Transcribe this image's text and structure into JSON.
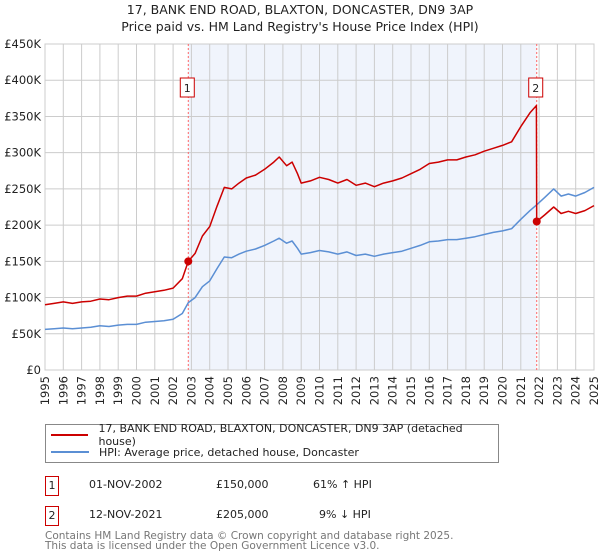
{
  "chart_data": {
    "type": "line",
    "title": "17, BANK END ROAD, BLAXTON, DONCASTER, DN9 3AP",
    "subtitle": "Price paid vs. HM Land Registry's House Price Index (HPI)",
    "xlabel": "",
    "ylabel": "",
    "xlim": [
      1995,
      2025
    ],
    "ylim": [
      0,
      450000
    ],
    "grid": true,
    "yticks": [
      0,
      50000,
      100000,
      150000,
      200000,
      250000,
      300000,
      350000,
      400000,
      450000
    ],
    "ytick_labels": [
      "£0",
      "£50K",
      "£100K",
      "£150K",
      "£200K",
      "£250K",
      "£300K",
      "£350K",
      "£400K",
      "£450K"
    ],
    "xtick_labels": [
      "1995",
      "1996",
      "1997",
      "1998",
      "1999",
      "2000",
      "2001",
      "2002",
      "2003",
      "2004",
      "2005",
      "2006",
      "2007",
      "2008",
      "2009",
      "2010",
      "2011",
      "2012",
      "2013",
      "2014",
      "2015",
      "2016",
      "2017",
      "2018",
      "2019",
      "2020",
      "2021",
      "2022",
      "2023",
      "2024",
      "2025"
    ],
    "shaded_range": [
      2002.83,
      2021.87
    ],
    "legend_position": "below",
    "series": [
      {
        "name": "17, BANK END ROAD, BLAXTON, DONCASTER, DN9 3AP (detached house)",
        "color": "#cc0000",
        "x": [
          1995,
          1995.5,
          1996,
          1996.5,
          1997,
          1997.5,
          1998,
          1998.5,
          1999,
          1999.5,
          2000,
          2000.5,
          2001,
          2001.5,
          2002,
          2002.5,
          2002.83,
          2003.2,
          2003.6,
          2004,
          2004.4,
          2004.8,
          2005.2,
          2005.6,
          2006,
          2006.5,
          2007,
          2007.5,
          2007.8,
          2008.2,
          2008.5,
          2008.8,
          2009,
          2009.5,
          2010,
          2010.5,
          2011,
          2011.5,
          2012,
          2012.5,
          2013,
          2013.5,
          2014,
          2014.5,
          2015,
          2015.5,
          2016,
          2016.5,
          2017,
          2017.5,
          2018,
          2018.5,
          2019,
          2019.5,
          2020,
          2020.5,
          2021,
          2021.5,
          2021.85,
          2021.87,
          2022.3,
          2022.8,
          2023.2,
          2023.6,
          2024,
          2024.5,
          2025
        ],
        "y": [
          90000,
          92000,
          94000,
          92000,
          94000,
          95000,
          98000,
          97000,
          100000,
          102000,
          102000,
          106000,
          108000,
          110000,
          113000,
          126000,
          150000,
          161000,
          185000,
          198000,
          226000,
          252000,
          250000,
          258000,
          265000,
          269000,
          277000,
          287000,
          294000,
          282000,
          287000,
          271000,
          258000,
          261000,
          266000,
          263000,
          258000,
          263000,
          255000,
          258000,
          253000,
          258000,
          261000,
          265000,
          271000,
          277000,
          285000,
          287000,
          290000,
          290000,
          294000,
          297000,
          302000,
          306000,
          310000,
          315000,
          336000,
          355000,
          365000,
          205000,
          214000,
          225000,
          216000,
          219000,
          216000,
          220000,
          227000
        ]
      },
      {
        "name": "HPI: Average price, detached house, Doncaster",
        "color": "#5b8fd4",
        "x": [
          1995,
          1995.5,
          1996,
          1996.5,
          1997,
          1997.5,
          1998,
          1998.5,
          1999,
          1999.5,
          2000,
          2000.5,
          2001,
          2001.5,
          2002,
          2002.5,
          2002.83,
          2003.2,
          2003.6,
          2004,
          2004.4,
          2004.8,
          2005.2,
          2005.6,
          2006,
          2006.5,
          2007,
          2007.5,
          2007.8,
          2008.2,
          2008.5,
          2008.8,
          2009,
          2009.5,
          2010,
          2010.5,
          2011,
          2011.5,
          2012,
          2012.5,
          2013,
          2013.5,
          2014,
          2014.5,
          2015,
          2015.5,
          2016,
          2016.5,
          2017,
          2017.5,
          2018,
          2018.5,
          2019,
          2019.5,
          2020,
          2020.5,
          2021,
          2021.5,
          2021.87,
          2022.3,
          2022.8,
          2023.2,
          2023.6,
          2024,
          2024.5,
          2025
        ],
        "y": [
          56000,
          57000,
          58000,
          57000,
          58000,
          59000,
          61000,
          60000,
          62000,
          63000,
          63000,
          66000,
          67000,
          68000,
          70000,
          78000,
          93000,
          100000,
          115000,
          123000,
          140000,
          156000,
          155000,
          160000,
          164000,
          167000,
          172000,
          178000,
          182000,
          175000,
          178000,
          168000,
          160000,
          162000,
          165000,
          163000,
          160000,
          163000,
          158000,
          160000,
          157000,
          160000,
          162000,
          164000,
          168000,
          172000,
          177000,
          178000,
          180000,
          180000,
          182000,
          184000,
          187000,
          190000,
          192000,
          195000,
          208000,
          220000,
          228000,
          238000,
          250000,
          240000,
          243000,
          240000,
          245000,
          252000
        ]
      }
    ],
    "sales": [
      {
        "label": "1",
        "x": 2002.83,
        "y": 150000,
        "date": "01-NOV-2002",
        "price": "£150,000",
        "hpi": "61% ↑ HPI"
      },
      {
        "label": "2",
        "x": 2021.87,
        "y": 205000,
        "date": "12-NOV-2021",
        "price": "£205,000",
        "hpi": "9% ↓ HPI"
      }
    ]
  },
  "footer": {
    "line1": "Contains HM Land Registry data © Crown copyright and database right 2025.",
    "line2": "This data is licensed under the Open Government Licence v3.0."
  }
}
